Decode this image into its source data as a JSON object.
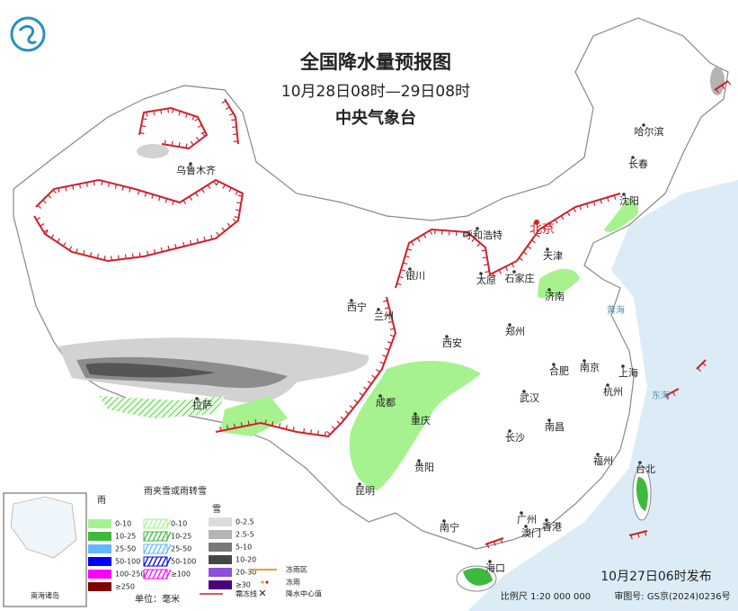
{
  "header": {
    "title": "全国降水量预报图",
    "period": "10月28日08时—29日08时",
    "agency": "中央气象台"
  },
  "cities": [
    "乌鲁木齐",
    "哈尔滨",
    "长春",
    "沈阳",
    "北京",
    "天津",
    "呼和浩特",
    "石家庄",
    "太原",
    "银川",
    "济南",
    "西宁",
    "兰州",
    "郑州",
    "西安",
    "合肥",
    "南京",
    "上海",
    "拉萨",
    "成都",
    "武汉",
    "杭州",
    "重庆",
    "长沙",
    "南昌",
    "贵阳",
    "福州",
    "台北",
    "昆明",
    "南宁",
    "广州",
    "澳门",
    "香港",
    "海口"
  ],
  "seas": [
    "黄海",
    "东海"
  ],
  "legend": {
    "rain": {
      "title": "雨",
      "items": [
        {
          "label": "0-10",
          "color": "#a6f28f"
        },
        {
          "label": "10-25",
          "color": "#3dba3d"
        },
        {
          "label": "25-50",
          "color": "#61b8ff"
        },
        {
          "label": "50-100",
          "color": "#0000fe"
        },
        {
          "label": "100-250",
          "color": "#fa00fa"
        },
        {
          "label": "≥250",
          "color": "#800000"
        }
      ]
    },
    "sleet": {
      "title": "雨夹雪或雨转雪",
      "items": [
        {
          "label": "0-10",
          "color": "#a6f28f"
        },
        {
          "label": "10-25",
          "color": "#3dba3d"
        },
        {
          "label": "25-50",
          "color": "#61b8ff"
        },
        {
          "label": "50-100",
          "color": "#0000fe"
        },
        {
          "label": "≥100",
          "color": "#fa00fa"
        }
      ]
    },
    "snow": {
      "title": "雪",
      "items": [
        {
          "label": "0-2.5",
          "color": "#dcdcdc"
        },
        {
          "label": "2.5-5",
          "color": "#b4b4b4"
        },
        {
          "label": "5-10",
          "color": "#787878"
        },
        {
          "label": "10-20",
          "color": "#464646"
        },
        {
          "label": "20-30",
          "color": "#8c50dc"
        },
        {
          "label": "≥30",
          "color": "#4b0082"
        }
      ]
    },
    "unit": "单位：毫米",
    "symbols": [
      "冻雨区",
      "冻雨",
      "霜冻线",
      "降水中心值"
    ]
  },
  "inset": "南海诸岛",
  "footer": {
    "issued": "10月27日06时发布",
    "scale": "比例尺 1:20 000 000",
    "approval": "审图号: GS京(2024)0236号"
  }
}
